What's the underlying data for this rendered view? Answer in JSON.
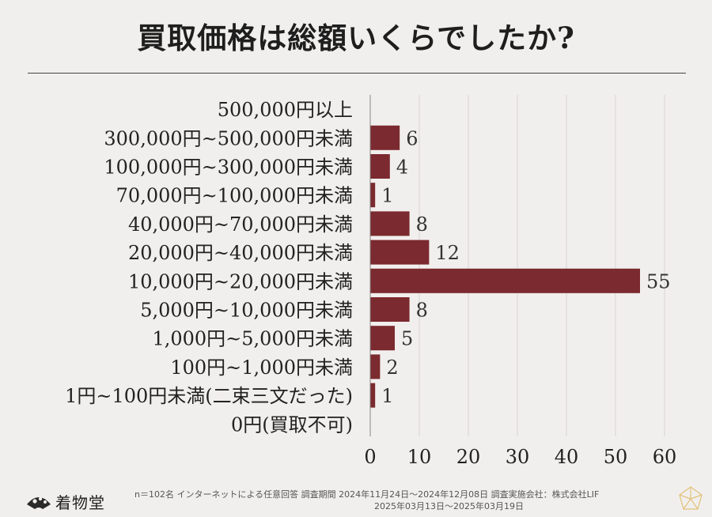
{
  "chart_data": {
    "type": "bar",
    "orientation": "horizontal",
    "title": "買取価格は総額いくらでしたか?",
    "categories": [
      "500,000円以上",
      "300,000円~500,000円未満",
      "100,000円~300,000円未満",
      "70,000円~100,000円未満",
      "40,000円~70,000円未満",
      "20,000円~40,000円未満",
      "10,000円~20,000円未満",
      "5,000円~10,000円未満",
      "1,000円~5,000円未満",
      "100円~1,000円未満",
      "1円~100円未満(二束三文だった)",
      "0円(買取不可)"
    ],
    "values": [
      0,
      6,
      4,
      1,
      8,
      12,
      55,
      8,
      5,
      2,
      1,
      0
    ],
    "xlim": [
      0,
      60
    ],
    "xticks": [
      0,
      10,
      20,
      30,
      40,
      50,
      60
    ],
    "grid": true,
    "bar_color": "#7b2a2f"
  },
  "footer": {
    "line1": "n＝102名 インターネットによる任意回答 調査期間 2024年11月24日～2024年12月08日 調査実施会社：株式会社LIF",
    "line2": "2025年03月13日～2025年03月19日"
  },
  "logo": {
    "text": "着物堂"
  }
}
